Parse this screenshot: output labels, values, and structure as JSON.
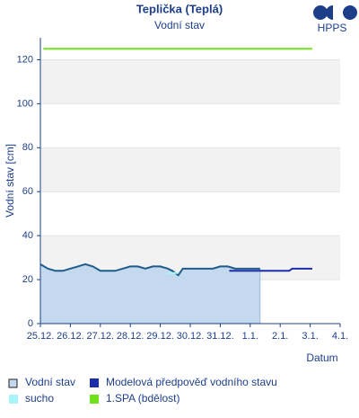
{
  "chart_data": {
    "type": "line",
    "title": "Teplička (Teplá)",
    "subtitle": "Vodní stav",
    "logo": "HPPS",
    "y_label": "Vodní stav [cm]",
    "x_label": "Datum",
    "xlim": [
      0,
      10
    ],
    "xticks": [
      {
        "value": 0,
        "label": "25.12."
      },
      {
        "value": 1,
        "label": "26.12."
      },
      {
        "value": 2,
        "label": "27.12."
      },
      {
        "value": 3,
        "label": "28.12."
      },
      {
        "value": 4,
        "label": "29.12."
      },
      {
        "value": 5,
        "label": "30.12."
      },
      {
        "value": 6,
        "label": "31.12."
      },
      {
        "value": 7,
        "label": "1.1."
      },
      {
        "value": 8,
        "label": "2.1."
      },
      {
        "value": 9,
        "label": "3.1."
      },
      {
        "value": 10,
        "label": "4.1."
      }
    ],
    "ylim": [
      0,
      130
    ],
    "yticks": [
      0,
      20,
      40,
      60,
      80,
      100,
      120
    ],
    "grid": "bands",
    "series": [
      {
        "name": "Vodní stav",
        "color": "#1d5c8a",
        "fill": "#c5d9ee",
        "legend_icon": "box",
        "x": [
          0,
          0.25,
          0.5,
          0.75,
          1,
          1.25,
          1.5,
          1.75,
          2,
          2.25,
          2.5,
          2.75,
          3,
          3.25,
          3.5,
          3.75,
          4,
          4.25,
          4.4,
          4.6,
          4.75,
          5,
          5.25,
          5.5,
          5.75,
          6,
          6.25,
          6.5,
          6.75,
          7,
          7.33
        ],
        "values": [
          27,
          25,
          24,
          24,
          25,
          26,
          27,
          26,
          24,
          24,
          24,
          25,
          26,
          26,
          25,
          26,
          26,
          25,
          24,
          22,
          25,
          25,
          25,
          25,
          25,
          26,
          26,
          25,
          25,
          25,
          25
        ]
      },
      {
        "name": "Modelová předpověď vodního stavu",
        "color": "#1d2fa8",
        "legend_icon": "square",
        "x": [
          6.3,
          8.3,
          8.4,
          9.07
        ],
        "values": [
          24,
          24,
          25,
          25
        ]
      },
      {
        "name": "sucho",
        "color": "#a8f4f8",
        "legend_icon": "square",
        "x": [
          4.2,
          4.6
        ],
        "values": [
          23,
          23
        ]
      },
      {
        "name": "1.SPA (bdělost)",
        "color": "#6fe21c",
        "legend_icon": "square",
        "x": [
          0.1,
          9.07
        ],
        "values": [
          125,
          125
        ]
      }
    ]
  }
}
